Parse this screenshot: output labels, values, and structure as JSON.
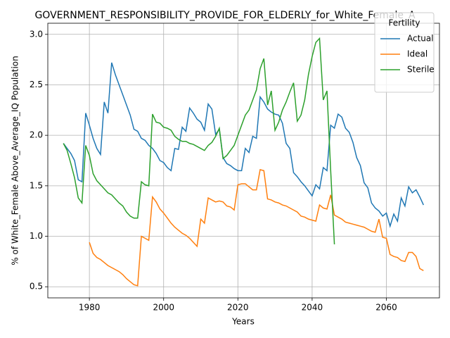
{
  "chart_data": {
    "type": "line",
    "title": "GOVERNMENT_RESPONSIBILITY_PROVIDE_FOR_ELDERLY_for_White_Female_A",
    "xlabel": "Years",
    "ylabel": "% of White_Female Above_Average_IQ Population",
    "legend_title": "Fertility",
    "legend_loc": "upper right",
    "grid": true,
    "xlim": [
      1968.8,
      2074.3
    ],
    "ylim": [
      0.39,
      3.11
    ],
    "xticks": [
      1980,
      2000,
      2020,
      2040,
      2060
    ],
    "yticks": [
      0.5,
      {
        "value": 1,
        "label": "1.0"
      },
      1.5,
      {
        "value": 2,
        "label": "2.0"
      },
      2.5,
      {
        "value": 3,
        "label": "3.0"
      }
    ],
    "x": [
      1973,
      1974,
      1975,
      1976,
      1977,
      1978,
      1979,
      1980,
      1981,
      1982,
      1983,
      1984,
      1985,
      1986,
      1987,
      1988,
      1989,
      1990,
      1991,
      1992,
      1993,
      1994,
      1995,
      1996,
      1997,
      1998,
      1999,
      2000,
      2001,
      2002,
      2003,
      2004,
      2005,
      2006,
      2007,
      2008,
      2009,
      2010,
      2011,
      2012,
      2013,
      2014,
      2015,
      2016,
      2017,
      2018,
      2019,
      2020,
      2021,
      2022,
      2023,
      2024,
      2025,
      2026,
      2027,
      2028,
      2029,
      2030,
      2031,
      2032,
      2033,
      2034,
      2035,
      2036,
      2037,
      2038,
      2039,
      2040,
      2041,
      2042,
      2043,
      2044,
      2045,
      2046,
      2047,
      2048,
      2049,
      2050,
      2051,
      2052,
      2053,
      2054,
      2055,
      2056,
      2057,
      2058,
      2059,
      2060,
      2061,
      2062,
      2063,
      2064,
      2065,
      2066,
      2067,
      2068,
      2069,
      2070
    ],
    "series": [
      {
        "name": "Actual",
        "color": "#1f77b4",
        "values": [
          1.92,
          1.87,
          1.82,
          1.75,
          1.56,
          1.54,
          2.22,
          2.1,
          1.97,
          1.87,
          1.81,
          2.33,
          2.22,
          2.72,
          2.6,
          2.5,
          2.4,
          2.3,
          2.2,
          2.06,
          2.04,
          1.97,
          1.95,
          1.9,
          1.87,
          1.82,
          1.75,
          1.73,
          1.68,
          1.65,
          1.87,
          1.86,
          2.08,
          2.04,
          2.27,
          2.22,
          2.16,
          2.13,
          2.05,
          2.31,
          2.26,
          2.01,
          2.06,
          1.78,
          1.72,
          1.7,
          1.67,
          1.65,
          1.65,
          1.87,
          1.83,
          1.99,
          1.97,
          2.38,
          2.33,
          2.26,
          2.23,
          2.21,
          2.2,
          2.12,
          1.92,
          1.87,
          1.63,
          1.59,
          1.54,
          1.5,
          1.45,
          1.4,
          1.51,
          1.47,
          1.68,
          1.65,
          2.1,
          2.07,
          2.21,
          2.18,
          2.07,
          2.03,
          1.93,
          1.78,
          1.7,
          1.53,
          1.48,
          1.33,
          1.28,
          1.25,
          1.2,
          1.23,
          1.1,
          1.22,
          1.15,
          1.38,
          1.3,
          1.49,
          1.43,
          1.46,
          1.39,
          1.31
        ]
      },
      {
        "name": "Ideal",
        "color": "#ff7f0e",
        "values": [
          null,
          null,
          null,
          null,
          null,
          null,
          null,
          0.94,
          0.83,
          0.79,
          0.77,
          0.74,
          0.71,
          0.69,
          0.67,
          0.65,
          0.62,
          0.58,
          0.55,
          0.52,
          0.51,
          1.0,
          0.98,
          0.96,
          1.39,
          1.34,
          1.27,
          1.23,
          1.18,
          1.13,
          1.09,
          1.06,
          1.03,
          1.01,
          0.98,
          0.94,
          0.9,
          1.17,
          1.13,
          1.38,
          1.36,
          1.34,
          1.35,
          1.34,
          1.3,
          1.29,
          1.26,
          1.51,
          1.52,
          1.52,
          1.49,
          1.46,
          1.46,
          1.66,
          1.65,
          1.37,
          1.36,
          1.34,
          1.33,
          1.31,
          1.3,
          1.28,
          1.26,
          1.24,
          1.2,
          1.19,
          1.17,
          1.16,
          1.15,
          1.31,
          1.28,
          1.27,
          1.41,
          1.21,
          1.19,
          1.17,
          1.14,
          1.13,
          1.12,
          1.11,
          1.1,
          1.09,
          1.07,
          1.05,
          1.04,
          1.17,
          0.99,
          0.98,
          0.82,
          0.8,
          0.79,
          0.76,
          0.75,
          0.84,
          0.84,
          0.8,
          0.68,
          0.66
        ]
      },
      {
        "name": "Sterile",
        "color": "#2ca02c",
        "values": [
          1.92,
          1.85,
          1.72,
          1.58,
          1.38,
          1.33,
          1.9,
          1.8,
          1.62,
          1.55,
          1.51,
          1.47,
          1.43,
          1.41,
          1.37,
          1.33,
          1.3,
          1.24,
          1.2,
          1.18,
          1.18,
          1.54,
          1.51,
          1.5,
          2.21,
          2.13,
          2.12,
          2.08,
          2.07,
          2.05,
          1.99,
          1.96,
          1.94,
          1.94,
          1.92,
          1.91,
          1.89,
          1.87,
          1.85,
          1.9,
          1.93,
          1.99,
          2.07,
          1.77,
          1.8,
          1.85,
          1.9,
          2.0,
          2.1,
          2.2,
          2.25,
          2.35,
          2.45,
          2.66,
          2.76,
          2.3,
          2.44,
          2.05,
          2.13,
          2.25,
          2.33,
          2.43,
          2.52,
          2.14,
          2.2,
          2.35,
          2.6,
          2.78,
          2.92,
          2.96,
          2.35,
          2.44,
          1.65,
          0.92,
          null,
          null,
          null,
          null,
          null,
          null,
          null,
          null,
          null,
          null,
          null,
          null,
          null,
          null,
          null,
          null,
          null,
          null,
          null,
          null,
          null,
          null,
          null,
          null
        ]
      }
    ]
  }
}
